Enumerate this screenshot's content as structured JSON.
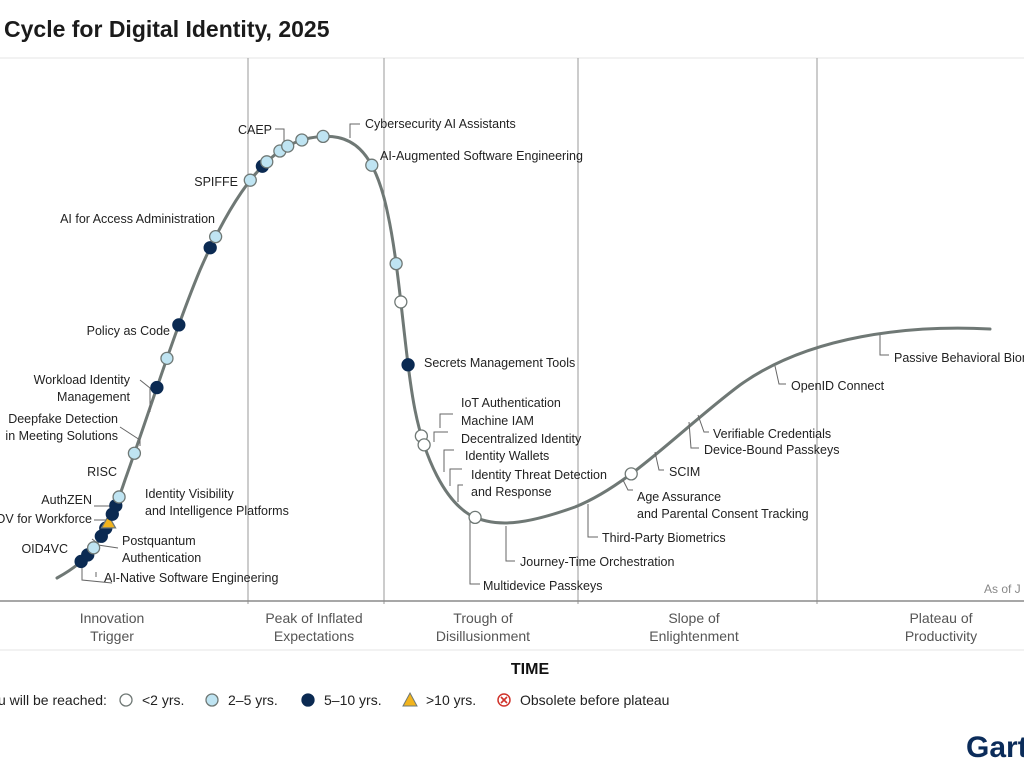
{
  "chart_data": {
    "type": "line",
    "title": "Cycle for Digital Identity, 2025",
    "xlabel": "TIME",
    "phases": [
      "Innovation Trigger",
      "Peak of Inflated Expectations",
      "Trough of Disillusionment",
      "Slope of Enlightenment",
      "Plateau of Productivity"
    ],
    "as_of": "As of J",
    "legend_label": "u will be reached:",
    "legend": [
      {
        "key": "lt2",
        "label": "<2 yrs."
      },
      {
        "key": "2to5",
        "label": "2–5 yrs."
      },
      {
        "key": "5to10",
        "label": "5–10 yrs."
      },
      {
        "key": "gt10",
        "label": ">10 yrs."
      },
      {
        "key": "obsolete",
        "label": "Obsolete before plateau"
      }
    ],
    "colors": {
      "lt2": "#ffffff",
      "2to5": "#bfe4f2",
      "5to10": "#0b2a52",
      "gt10": "#f2b41c",
      "obsolete": "#d0342c",
      "curve": "#6f7875"
    },
    "points": [
      {
        "name": "AI-Native Software Engineering",
        "cat": "5to10",
        "t": 0.019
      },
      {
        "name": "OID4VC",
        "cat": "5to10",
        "t": 0.025
      },
      {
        "name": "Postquantum Authentication",
        "cat": "2to5",
        "t": 0.031
      },
      {
        "name": "OV for Workforce",
        "cat": "5to10",
        "t": 0.04
      },
      {
        "name": "AuthZEN",
        "cat": "5to10",
        "t": 0.046
      },
      {
        "name": "Identity Visibility and Intelligence Platforms",
        "cat": "gt10",
        "t": 0.05
      },
      {
        "name": "RISC",
        "cat": "5to10",
        "t": 0.056
      },
      {
        "name": "Deepfake Detection in Meeting Solutions",
        "cat": "5to10",
        "t": 0.062
      },
      {
        "name": "Workload Identity Management",
        "cat": "2to5",
        "t": 0.068
      },
      {
        "name": "Policy as Code",
        "cat": "2to5",
        "t": 0.098
      },
      {
        "name": "AI for Access Administration",
        "cat": "5to10",
        "t": 0.143
      },
      {
        "name": "SPIFFE",
        "cat": "2to5",
        "t": 0.163
      },
      {
        "name": "CAEP",
        "cat": "5to10",
        "t": 0.186
      },
      {
        "name": "Cybersecurity AI Assistants",
        "cat": "5to10",
        "t": 0.24
      },
      {
        "name": "AI-Augmented Software Engineering",
        "cat": "2to5",
        "t": 0.248
      },
      {
        "name": "Secrets Management Tools",
        "cat": "2to5",
        "t": 0.291
      },
      {
        "name": "IoT Authentication",
        "cat": "5to10",
        "t": 0.303
      },
      {
        "name": "Machine IAM",
        "cat": "2to5",
        "t": 0.307
      },
      {
        "name": "Decentralized Identity",
        "cat": "2to5",
        "t": 0.318
      },
      {
        "name": "Identity Wallets",
        "cat": "2to5",
        "t": 0.324
      },
      {
        "name": "Identity Threat Detection and Response",
        "cat": "2to5",
        "t": 0.334
      },
      {
        "name": "Multidevice Passkeys",
        "cat": "2to5",
        "t": 0.348
      },
      {
        "name": "Journey-Time Orchestration",
        "cat": "2to5",
        "t": 0.387
      },
      {
        "name": "Third-Party Biometrics",
        "cat": "2to5",
        "t": 0.453
      },
      {
        "name": "Age Assurance and Parental Consent Tracking",
        "cat": "lt2",
        "t": 0.478
      },
      {
        "name": "SCIM",
        "cat": "5to10",
        "t": 0.519
      },
      {
        "name": "Device-Bound Passkeys",
        "cat": "lt2",
        "t": 0.566
      },
      {
        "name": "Verifiable Credentials",
        "cat": "lt2",
        "t": 0.572
      },
      {
        "name": "OpenID Connect",
        "cat": "lt2",
        "t": 0.631
      },
      {
        "name": "Passive Behavioral Biometrics",
        "cat": "lt2",
        "t": 0.74
      }
    ]
  },
  "brand": "Gart"
}
